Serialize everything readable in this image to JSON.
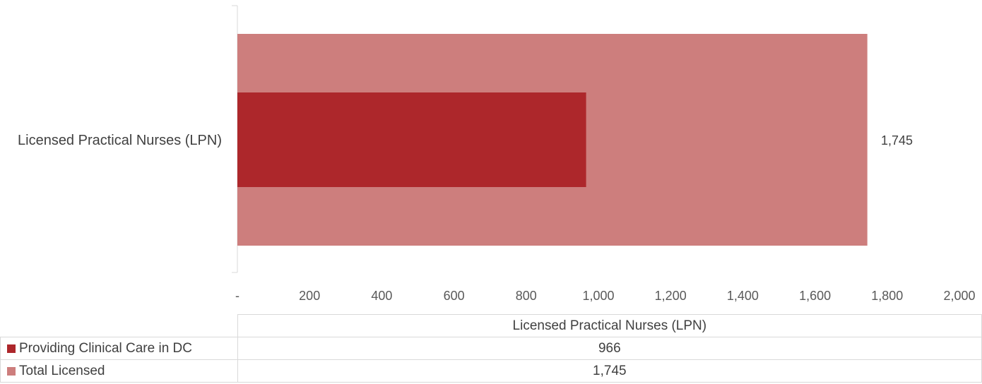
{
  "colors": {
    "providing": "#ad272b",
    "total": "#cd7e7d",
    "axis": "#d9d9d9"
  },
  "chart_data": {
    "type": "bar",
    "orientation": "horizontal",
    "categories": [
      "Licensed Practical Nurses (LPN)"
    ],
    "series": [
      {
        "name": "Providing Clinical Care in DC",
        "values": [
          966
        ]
      },
      {
        "name": "Total Licensed",
        "values": [
          1745
        ]
      }
    ],
    "xlim": [
      0,
      2000
    ],
    "x_tick_labels": [
      "-",
      "200",
      "400",
      "600",
      "800",
      "1,000",
      "1,200",
      "1,400",
      "1,600",
      "1,800",
      "2,000"
    ],
    "data_labels": [
      "1,745"
    ],
    "gridlines": false,
    "legend": "data-table-below"
  },
  "table": {
    "header": "Licensed Practical Nurses (LPN)",
    "rows": [
      {
        "label": "Providing Clinical Care in DC",
        "value": "966"
      },
      {
        "label": "Total Licensed",
        "value": "1,745"
      }
    ]
  }
}
